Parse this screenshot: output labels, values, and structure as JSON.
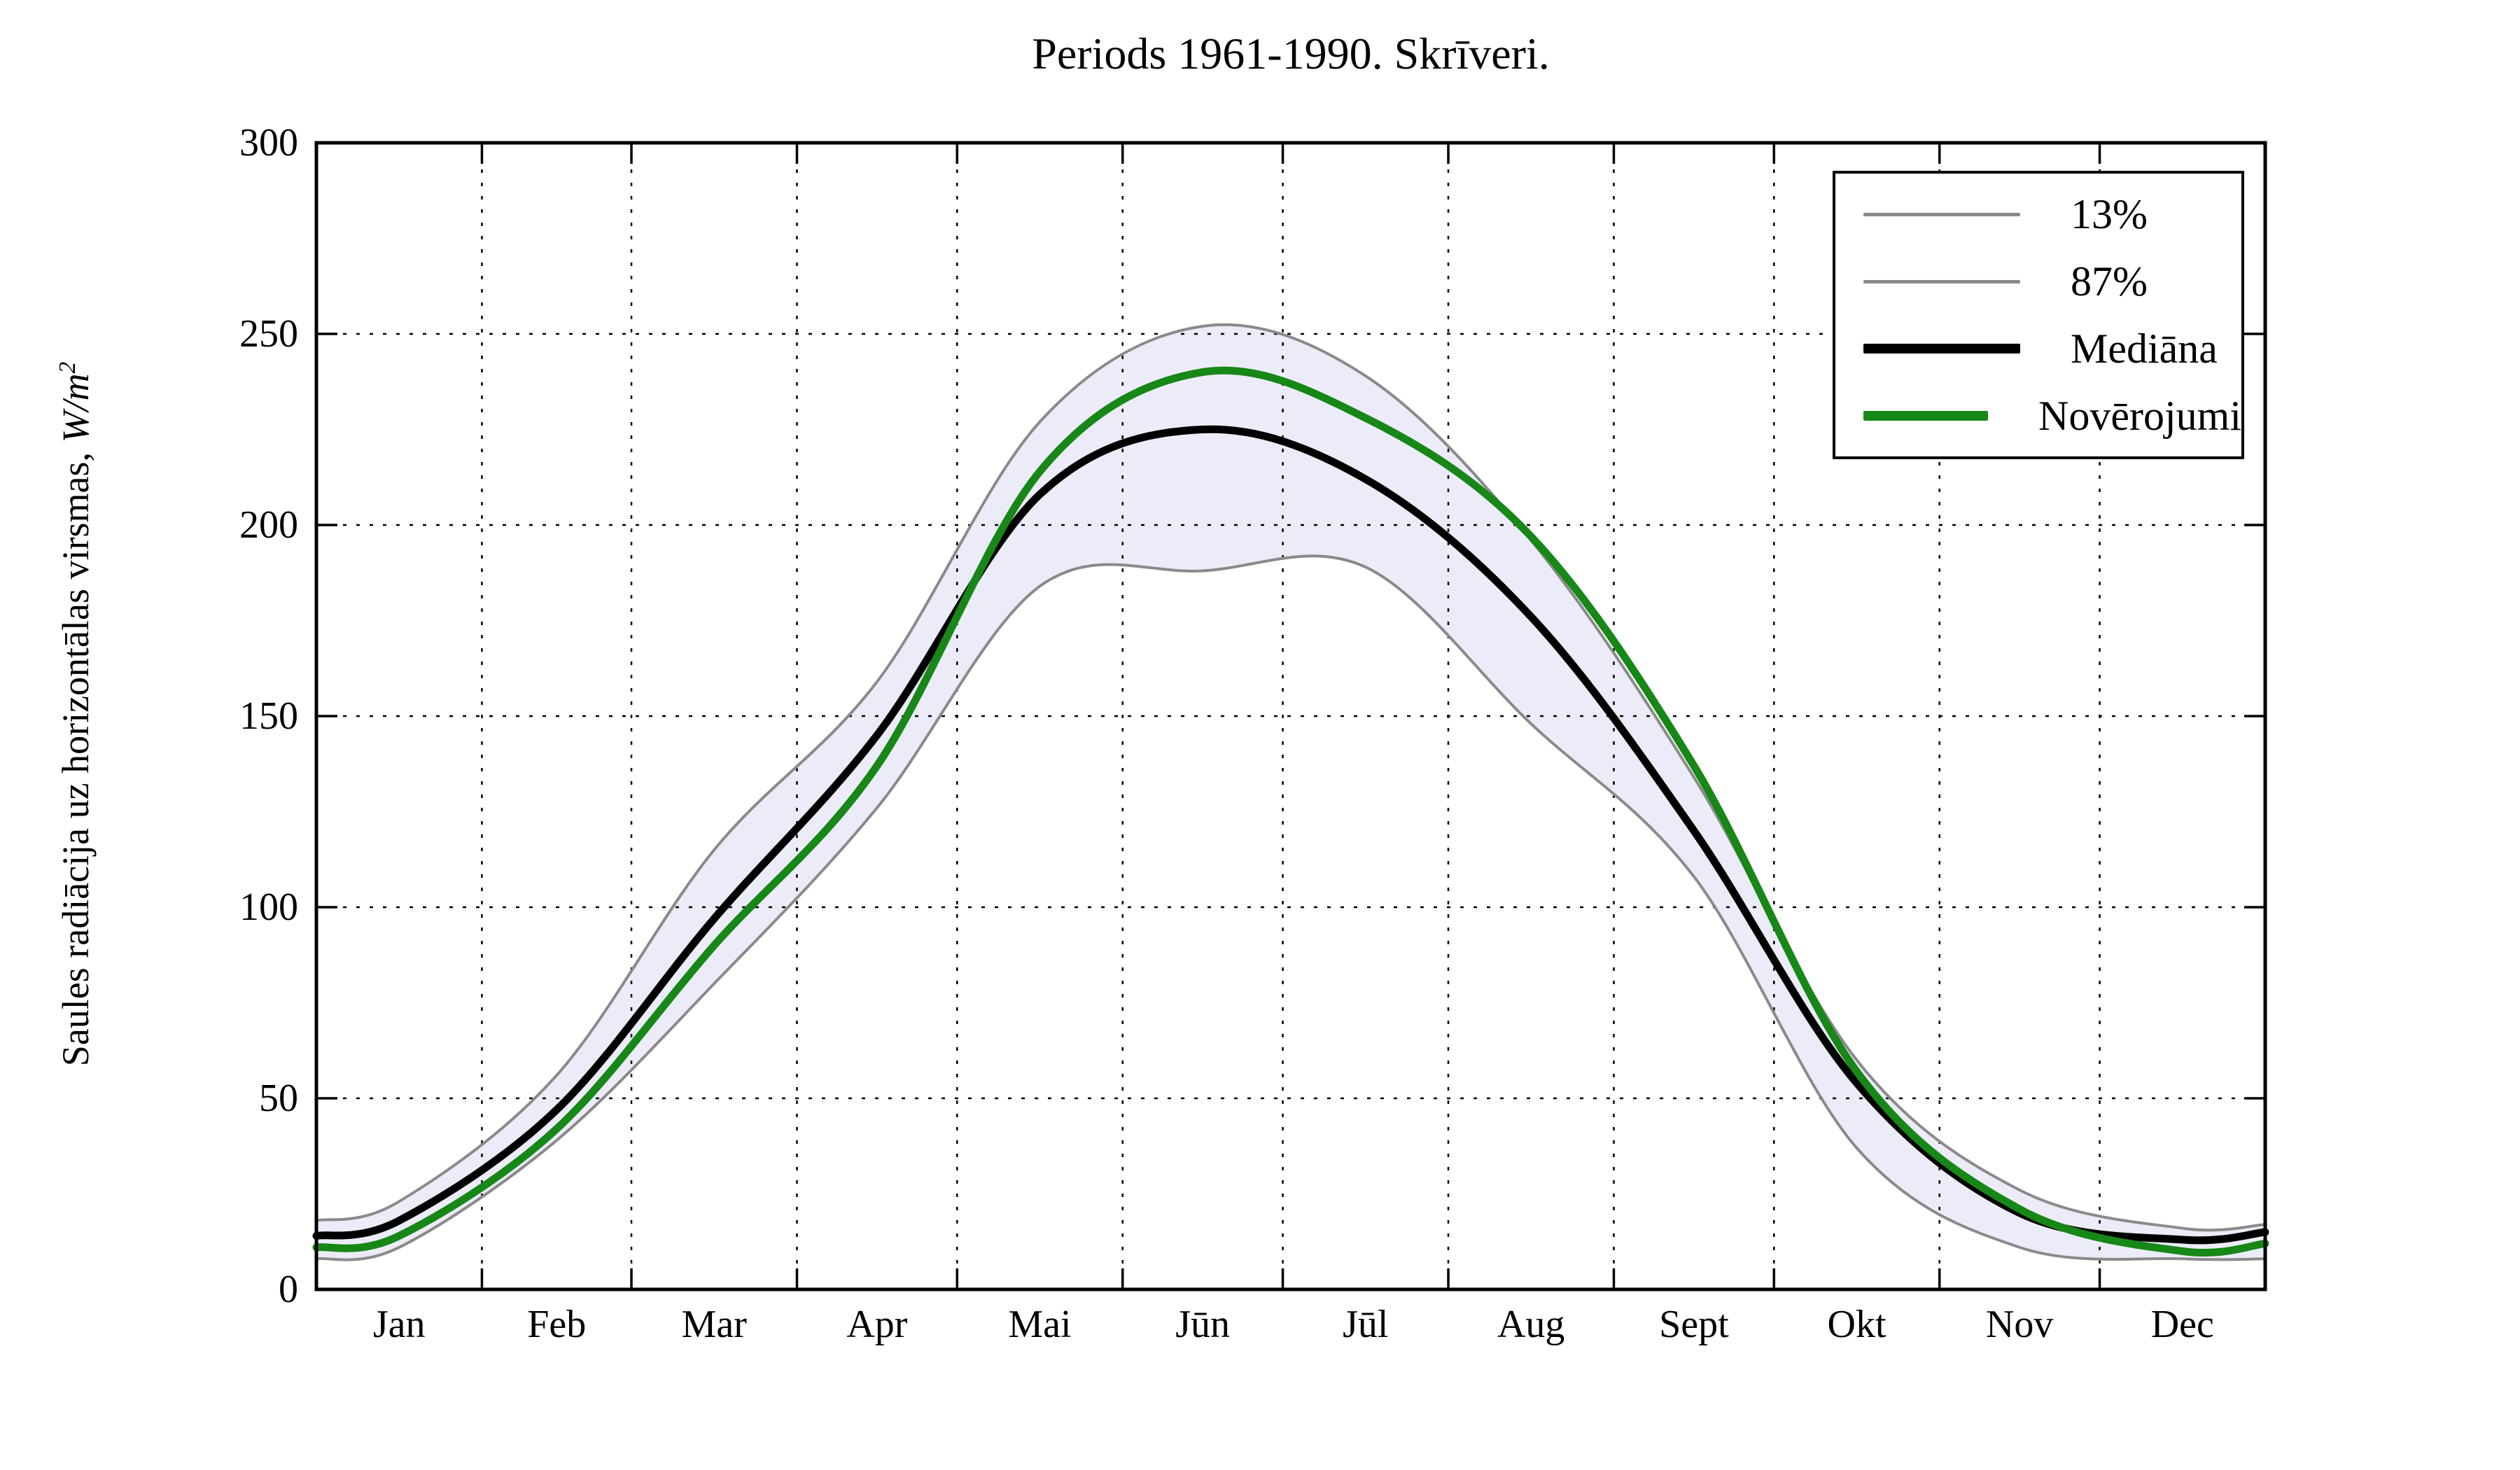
{
  "title": "Periods 1961-1990. Skrīveri.",
  "axes": {
    "ylabel_text": "Saules radiācija uz horizontālas virsmas, ",
    "ylabel_math": "W/m",
    "ylabel_exp": "2",
    "y_tick_labels": [
      "0",
      "50",
      "100",
      "150",
      "200",
      "250",
      "300"
    ],
    "x_tick_labels": [
      "Jan",
      "Feb",
      "Mar",
      "Apr",
      "Mai",
      "Jūn",
      "Jūl",
      "Aug",
      "Sept",
      "Okt",
      "Nov",
      "Dec"
    ]
  },
  "legend": {
    "entries": [
      {
        "label": "13%",
        "color": "#8a8a8a",
        "thickness": 5
      },
      {
        "label": "87%",
        "color": "#8a8a8a",
        "thickness": 5
      },
      {
        "label": "Mediāna",
        "color": "#000000",
        "thickness": 14
      },
      {
        "label": "Novērojumi",
        "color": "#178717",
        "thickness": 14
      }
    ]
  },
  "colors": {
    "background": "#ffffff",
    "band_fill": "#ECECF9",
    "percentile_line": "#8a8a8a",
    "median_line": "#000000",
    "observations_line": "#178717",
    "grid": "#000000",
    "spine": "#000000"
  },
  "chart_data": {
    "type": "line",
    "title": "Periods 1961-1990. Skrīveri.",
    "xlabel": "",
    "ylabel": "Saules radiācija uz horizontālas virsmas, W/m²",
    "ylim": [
      0,
      300
    ],
    "y_ticks": [
      0,
      50,
      100,
      150,
      200,
      250,
      300
    ],
    "categories": [
      "Jan",
      "Feb",
      "Mar",
      "Apr",
      "Mai",
      "Jūn",
      "Jūl",
      "Aug",
      "Sept",
      "Okt",
      "Nov",
      "Dec"
    ],
    "grid": "dotted black, horizontal every 50 W/m2, vertical at month boundaries",
    "legend_position": "upper right",
    "band": {
      "between": [
        "13%",
        "87%"
      ],
      "fill": "#ECECF9"
    },
    "x_days_months": [
      15.5,
      45,
      74.5,
      105,
      135.5,
      166,
      196.5,
      227.5,
      258,
      288.5,
      319,
      349.5
    ],
    "month_boundary_days": [
      31,
      59,
      90,
      120,
      151,
      181,
      212,
      243,
      273,
      304,
      334
    ],
    "year_days": 365,
    "series": [
      {
        "name": "13%",
        "color": "#8a8a8a",
        "width": 4,
        "values": [
          11,
          39,
          80,
          126,
          184,
          188,
          189,
          148,
          108,
          37,
          11,
          8
        ],
        "edge_start": 8,
        "edge_end": 8
      },
      {
        "name": "87%",
        "color": "#8a8a8a",
        "width": 4,
        "values": [
          23,
          56,
          115,
          159,
          227,
          252,
          239,
          196,
          134,
          60,
          26,
          16
        ],
        "edge_start": 18,
        "edge_end": 17
      },
      {
        "name": "Mediāna",
        "color": "#000000",
        "width": 11,
        "values": [
          18,
          47,
          97,
          145,
          208,
          225,
          212,
          176,
          120,
          54,
          20,
          13
        ],
        "edge_start": 14,
        "edge_end": 15
      },
      {
        "name": "Novērojumi",
        "color": "#178717",
        "width": 11,
        "values": [
          14,
          42,
          90,
          137,
          214,
          240,
          228,
          197,
          137,
          57,
          21,
          10
        ],
        "edge_start": 11,
        "edge_end": 12
      }
    ]
  }
}
